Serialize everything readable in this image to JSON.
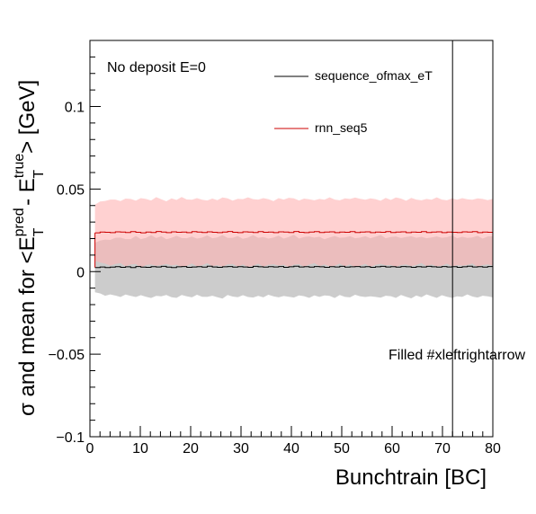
{
  "chart_data": {
    "type": "line",
    "title": "",
    "xlabel": "Bunchtrain [BC]",
    "ylabel": {
      "prefix": "σ and mean for <E",
      "sup1": "pred",
      "sub1": "T",
      "mid": " - E",
      "sup2": "true",
      "sub2": "T",
      "suffix": "> [GeV]"
    },
    "xlim": [
      0,
      80
    ],
    "ylim": [
      -0.1,
      0.14
    ],
    "x_ticks": [
      0,
      10,
      20,
      30,
      40,
      50,
      60,
      70,
      80
    ],
    "x_tick_labels": [
      "0",
      "10",
      "20",
      "30",
      "40",
      "50",
      "60",
      "70",
      "80"
    ],
    "y_ticks": [
      -0.1,
      -0.05,
      0,
      0.05,
      0.1
    ],
    "y_tick_labels": [
      "−0.1",
      "−0.05",
      "0",
      "0.05",
      "0.1"
    ],
    "annotations": [
      {
        "text": "No deposit E=0"
      },
      {
        "text": "Filled #xleftrightarrow"
      }
    ],
    "vertical_line_x": 72,
    "legend_position": "top-right",
    "series": [
      {
        "name": "sequence_ofmax_eT",
        "color": "#000000",
        "band_color": "#cccccc",
        "x_range": [
          1,
          80
        ],
        "mean": [
          0.0025,
          0.0028,
          0.0024,
          0.0027,
          0.003,
          0.0026,
          0.0029,
          0.0025,
          0.0031,
          0.0027,
          0.0026,
          0.003,
          0.0028,
          0.0032,
          0.0027,
          0.0025,
          0.0029,
          0.0031,
          0.0026,
          0.0028,
          0.003,
          0.0027,
          0.0033,
          0.0028,
          0.0026,
          0.0029,
          0.0031,
          0.0027,
          0.003,
          0.0028,
          0.0026,
          0.0032,
          0.0029,
          0.0027,
          0.003,
          0.0028,
          0.0031,
          0.0026,
          0.0029,
          0.0033,
          0.0028,
          0.003,
          0.0027,
          0.0031,
          0.0029,
          0.0026,
          0.003,
          0.0028,
          0.0032,
          0.0027,
          0.0029,
          0.0031,
          0.0028,
          0.003,
          0.0026,
          0.0029,
          0.0032,
          0.0028,
          0.003,
          0.0027,
          0.0031,
          0.0029,
          0.0026,
          0.003,
          0.0028,
          0.0032,
          0.0029,
          0.0027,
          0.0031,
          0.0028,
          0.003,
          0.0026,
          0.0029,
          0.0033,
          0.0028,
          0.003,
          0.0027,
          0.0031,
          0.0029
        ],
        "sigma": [
          0.015,
          0.016,
          0.017,
          0.0165,
          0.0175,
          0.018,
          0.0168,
          0.0172,
          0.0185,
          0.017,
          0.0178,
          0.019,
          0.0175,
          0.0182,
          0.0169,
          0.018,
          0.0188,
          0.0172,
          0.0176,
          0.0184,
          0.017,
          0.0179,
          0.0186,
          0.0174,
          0.0181,
          0.0192,
          0.0173,
          0.0178,
          0.0185,
          0.0171,
          0.018,
          0.0189,
          0.0176,
          0.0183,
          0.017,
          0.0178,
          0.0187,
          0.0174,
          0.0181,
          0.019,
          0.0172,
          0.0179,
          0.0186,
          0.0175,
          0.0182,
          0.017,
          0.0177,
          0.0188,
          0.0173,
          0.018,
          0.0185,
          0.0171,
          0.0178,
          0.0184,
          0.0176,
          0.0182,
          0.019,
          0.0174,
          0.0179,
          0.0186,
          0.0172,
          0.0181,
          0.0188,
          0.0175,
          0.0183,
          0.017,
          0.0178,
          0.0186,
          0.0174,
          0.018,
          0.0189,
          0.0176,
          0.0182,
          0.0171,
          0.0179,
          0.0187,
          0.0173,
          0.0181,
          0.0185
        ]
      },
      {
        "name": "rnn_seq5",
        "color": "#cc0000",
        "band_color": "#ffb3b3",
        "x_range": [
          1,
          80
        ],
        "mean": [
          0.0235,
          0.024,
          0.0238,
          0.0236,
          0.0241,
          0.0239,
          0.0237,
          0.0242,
          0.0238,
          0.0235,
          0.024,
          0.0237,
          0.0243,
          0.0239,
          0.0236,
          0.0241,
          0.0238,
          0.024,
          0.0236,
          0.0242,
          0.0239,
          0.0237,
          0.0241,
          0.0238,
          0.0236,
          0.024,
          0.0243,
          0.0238,
          0.0236,
          0.0241,
          0.0239,
          0.0237,
          0.0242,
          0.0238,
          0.024,
          0.0236,
          0.0241,
          0.0239,
          0.0237,
          0.0243,
          0.0238,
          0.0236,
          0.024,
          0.0242,
          0.0237,
          0.0239,
          0.0241,
          0.0236,
          0.024,
          0.0238,
          0.0242,
          0.0237,
          0.0239,
          0.0241,
          0.0236,
          0.024,
          0.0238,
          0.0242,
          0.0237,
          0.0239,
          0.0241,
          0.0236,
          0.024,
          0.0238,
          0.0242,
          0.0237,
          0.0239,
          0.0241,
          0.0236,
          0.024,
          0.0238,
          0.0237,
          0.0241,
          0.0239,
          0.0242,
          0.0236,
          0.024,
          0.0238,
          0.0239
        ],
        "sigma": [
          0.017,
          0.0185,
          0.019,
          0.02,
          0.0195,
          0.0188,
          0.0205,
          0.0198,
          0.0192,
          0.021,
          0.02,
          0.0194,
          0.0208,
          0.0199,
          0.019,
          0.0203,
          0.0196,
          0.0212,
          0.0201,
          0.0193,
          0.0206,
          0.0198,
          0.019,
          0.0204,
          0.0197,
          0.0209,
          0.02,
          0.0192,
          0.0205,
          0.0198,
          0.0211,
          0.0202,
          0.0194,
          0.0207,
          0.0199,
          0.0191,
          0.0204,
          0.0197,
          0.021,
          0.0201,
          0.0193,
          0.0206,
          0.0198,
          0.019,
          0.0203,
          0.0196,
          0.0209,
          0.02,
          0.0192,
          0.0205,
          0.0198,
          0.0211,
          0.0202,
          0.0194,
          0.0207,
          0.0199,
          0.0191,
          0.0204,
          0.0197,
          0.021,
          0.0201,
          0.0193,
          0.0206,
          0.0198,
          0.019,
          0.0203,
          0.0196,
          0.0209,
          0.02,
          0.0192,
          0.0205,
          0.0198,
          0.0204,
          0.0199,
          0.0193,
          0.0207,
          0.02,
          0.0195,
          0.0202
        ]
      }
    ]
  }
}
